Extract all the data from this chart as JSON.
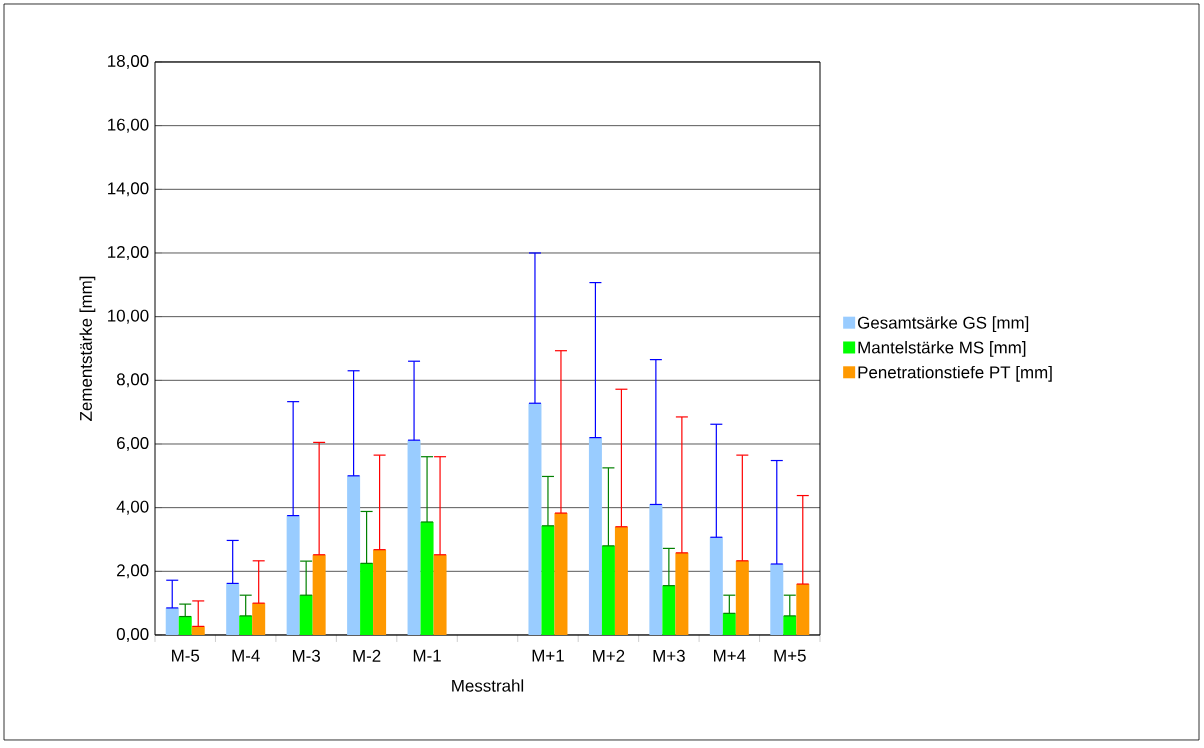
{
  "chart_data": {
    "type": "bar",
    "xlabel": "Messtrahl",
    "ylabel": "Zementstärke [mm]",
    "categories": [
      "M-5",
      "M-4",
      "M-3",
      "M-2",
      "M-1",
      null,
      "M+1",
      "M+2",
      "M+3",
      "M+4",
      "M+5"
    ],
    "series": [
      {
        "name": "Gesamtsärke GS [mm]",
        "color": "#99ccff",
        "values": [
          0.85,
          1.62,
          3.75,
          5.0,
          6.12,
          null,
          7.28,
          6.2,
          4.1,
          3.07,
          2.23
        ],
        "errors": [
          [
            0.85,
            1.72
          ],
          [
            1.62,
            2.97
          ],
          [
            3.75,
            7.33
          ],
          [
            5.0,
            8.3
          ],
          [
            6.12,
            8.6
          ],
          null,
          [
            7.28,
            12.0
          ],
          [
            6.2,
            11.07
          ],
          [
            4.1,
            8.65
          ],
          [
            3.07,
            6.62
          ],
          [
            2.23,
            5.48
          ]
        ]
      },
      {
        "name": "Mantelstärke MS [mm]",
        "color": "#00ff00",
        "values": [
          0.58,
          0.6,
          1.25,
          2.25,
          3.55,
          null,
          3.43,
          2.8,
          1.55,
          0.68,
          0.6
        ],
        "errors": [
          [
            0.58,
            0.97
          ],
          [
            0.6,
            1.25
          ],
          [
            1.25,
            2.32
          ],
          [
            2.25,
            3.88
          ],
          [
            3.55,
            5.6
          ],
          null,
          [
            3.43,
            4.98
          ],
          [
            2.8,
            5.25
          ],
          [
            1.55,
            2.72
          ],
          [
            0.68,
            1.25
          ],
          [
            0.6,
            1.25
          ]
        ]
      },
      {
        "name": "Penetrationstiefe PT [mm]",
        "color": "#ff9900",
        "values": [
          0.27,
          1.0,
          2.52,
          2.68,
          2.52,
          null,
          3.83,
          3.4,
          2.58,
          2.33,
          1.6
        ],
        "errors": [
          [
            0.27,
            1.07
          ],
          [
            1.0,
            2.33
          ],
          [
            2.52,
            6.05
          ],
          [
            2.68,
            5.65
          ],
          [
            2.52,
            5.6
          ],
          null,
          [
            3.83,
            8.93
          ],
          [
            3.4,
            7.72
          ],
          [
            2.58,
            6.85
          ],
          [
            2.33,
            5.65
          ],
          [
            1.6,
            4.38
          ]
        ]
      }
    ],
    "ylim": [
      0,
      18
    ],
    "yticks": [
      {
        "value": 0,
        "label": "0,00"
      },
      {
        "value": 2,
        "label": "2,00"
      },
      {
        "value": 4,
        "label": "4,00"
      },
      {
        "value": 6,
        "label": "6,00"
      },
      {
        "value": 8,
        "label": "8,00"
      },
      {
        "value": 10,
        "label": "10,00"
      },
      {
        "value": 12,
        "label": "12,00"
      },
      {
        "value": 14,
        "label": "14,00"
      },
      {
        "value": 16,
        "label": "16,00"
      },
      {
        "value": 18,
        "label": "18,00"
      }
    ],
    "grid": "y",
    "legend": "right"
  }
}
